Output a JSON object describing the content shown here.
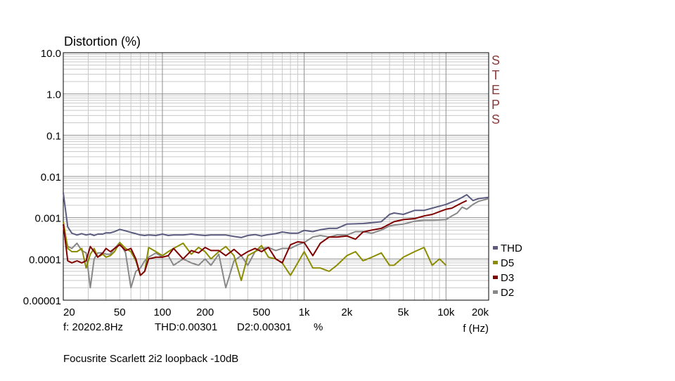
{
  "chart_data": {
    "type": "line",
    "title": "Distortion (%)",
    "xlabel": "f (Hz)",
    "ylabel": "Distortion (%)",
    "x_scale": "log",
    "y_scale": "log",
    "xlim": [
      20,
      20000
    ],
    "ylim": [
      1e-05,
      10
    ],
    "grid": true,
    "legend_position": "bottom-right",
    "x_tick_labels": [
      "20",
      "50",
      "100",
      "200",
      "500",
      "1k",
      "2k",
      "5k",
      "10k",
      "20k"
    ],
    "y_tick_labels": [
      "10.0",
      "1.0",
      "0.1",
      "0.01",
      "0.001",
      "0.0001",
      "0.00001"
    ],
    "watermark": "STEPS",
    "series": [
      {
        "name": "THD",
        "color": "#5c5c80",
        "x": [
          20,
          21.5,
          23,
          25,
          27,
          29,
          31,
          33,
          35,
          38,
          40,
          43,
          46,
          50,
          55,
          60,
          65,
          70,
          75,
          80,
          90,
          100,
          110,
          120,
          140,
          160,
          180,
          200,
          220,
          250,
          280,
          320,
          360,
          400,
          450,
          500,
          560,
          630,
          700,
          800,
          900,
          1000,
          1150,
          1300,
          1500,
          1700,
          2000,
          2300,
          2600,
          3000,
          3500,
          4000,
          4300,
          5000,
          6000,
          7000,
          8000,
          9000,
          10000,
          11000,
          12000,
          13000,
          14000,
          15500,
          17000,
          20000
        ],
        "y": [
          0.004,
          0.0006,
          0.00042,
          0.00038,
          0.00041,
          0.00038,
          0.0004,
          0.00037,
          0.0004,
          0.0004,
          0.00043,
          0.00043,
          0.00046,
          0.00052,
          0.00048,
          0.00044,
          0.00041,
          0.00038,
          0.00037,
          0.00038,
          0.00037,
          0.0004,
          0.00037,
          0.00038,
          0.00038,
          0.0004,
          0.00038,
          0.00037,
          0.00038,
          0.00038,
          0.00038,
          0.00035,
          0.00033,
          0.00037,
          0.00039,
          0.00036,
          0.00039,
          0.00041,
          0.00045,
          0.00042,
          0.00042,
          0.00049,
          0.00046,
          0.00051,
          0.00055,
          0.00055,
          0.0007,
          0.00071,
          0.00072,
          0.00076,
          0.0008,
          0.0012,
          0.0013,
          0.0012,
          0.0015,
          0.0015,
          0.0017,
          0.0019,
          0.0021,
          0.0024,
          0.0027,
          0.0031,
          0.0036,
          0.0026,
          0.0029,
          0.0031
        ]
      },
      {
        "name": "D5",
        "color": "#8c8c00",
        "x": [
          20,
          21.5,
          23,
          25,
          27,
          29,
          31,
          33,
          35,
          38,
          40,
          43,
          46,
          50,
          55,
          60,
          65,
          70,
          75,
          80,
          90,
          100,
          110,
          120,
          140,
          160,
          180,
          200,
          220,
          250,
          280,
          320,
          360,
          400,
          450,
          500,
          560,
          630,
          700,
          800,
          900,
          1000,
          1150,
          1300,
          1500,
          1700,
          2000,
          2300,
          2600,
          3000,
          3500,
          4000,
          4300,
          5000,
          6000,
          7000,
          8000,
          9000,
          10000
        ],
        "y": [
          0.0008,
          0.00018,
          0.00015,
          0.00015,
          0.00018,
          6e-05,
          0.00013,
          0.00018,
          0.00011,
          0.00013,
          0.00011,
          0.00012,
          0.00015,
          0.00025,
          0.00018,
          0.00015,
          9e-05,
          4e-05,
          5e-05,
          0.00019,
          0.00015,
          0.00012,
          0.00015,
          0.00018,
          0.00024,
          0.00013,
          0.00019,
          0.00015,
          0.0001,
          0.00015,
          0.0002,
          0.00012,
          3e-05,
          0.00012,
          0.00015,
          0.00021,
          0.00011,
          0.0001,
          8e-05,
          4e-05,
          8e-05,
          0.00015,
          6e-05,
          6e-05,
          5e-05,
          7e-05,
          0.00012,
          0.00015,
          9e-05,
          0.00011,
          0.00014,
          7e-05,
          7e-05,
          0.00011,
          0.00015,
          0.00019,
          7e-05,
          0.0001,
          7e-05
        ]
      },
      {
        "name": "D3",
        "color": "#800000",
        "x": [
          20,
          21.5,
          23,
          25,
          27,
          29,
          31,
          33,
          35,
          38,
          40,
          43,
          46,
          50,
          55,
          60,
          65,
          70,
          75,
          80,
          90,
          100,
          110,
          120,
          140,
          160,
          180,
          200,
          220,
          250,
          280,
          320,
          360,
          400,
          450,
          500,
          560,
          630,
          700,
          800,
          900,
          1000,
          1150,
          1300,
          1500,
          1700,
          2000,
          2300,
          2600,
          3000,
          3500,
          4000,
          4300,
          5000,
          6000,
          7000,
          8000,
          9000,
          10000,
          11000,
          12000,
          13000,
          14000
        ],
        "y": [
          0.0007,
          9e-05,
          8e-05,
          9e-05,
          8e-05,
          9e-05,
          0.0002,
          0.00015,
          0.00011,
          0.00014,
          0.00018,
          0.00015,
          0.00018,
          0.00022,
          0.00016,
          0.00018,
          0.0001,
          4e-05,
          5e-05,
          0.0001,
          0.00011,
          0.00011,
          0.00012,
          0.00018,
          0.0001,
          0.00016,
          0.00014,
          0.00019,
          0.00016,
          0.00016,
          0.00012,
          0.00017,
          0.00012,
          0.00015,
          0.00018,
          0.00015,
          0.00019,
          0.0001,
          8e-05,
          0.00022,
          0.00026,
          0.00025,
          0.00012,
          0.00024,
          0.00034,
          0.00034,
          0.00036,
          0.0003,
          0.00045,
          0.0005,
          0.00055,
          0.0007,
          0.0008,
          0.0009,
          0.00095,
          0.0011,
          0.0012,
          0.0014,
          0.0016,
          0.0017,
          0.002,
          0.0023,
          0.0026
        ]
      },
      {
        "name": "D2",
        "color": "#888888",
        "x": [
          20,
          21.5,
          23,
          25,
          27,
          29,
          31,
          33,
          35,
          38,
          40,
          43,
          46,
          50,
          55,
          60,
          65,
          70,
          75,
          80,
          90,
          100,
          110,
          120,
          140,
          160,
          180,
          200,
          220,
          250,
          280,
          320,
          360,
          400,
          450,
          500,
          560,
          630,
          700,
          800,
          900,
          1000,
          1150,
          1300,
          1500,
          1700,
          2000,
          2300,
          2600,
          3000,
          3500,
          4000,
          4300,
          5000,
          6000,
          7000,
          8000,
          9000,
          10000,
          11000,
          12000,
          13000,
          14000,
          15500,
          17000,
          20000
        ],
        "y": [
          0.0006,
          0.0002,
          0.00018,
          0.00024,
          0.00016,
          0.00014,
          2e-05,
          0.0001,
          0.00014,
          0.00014,
          0.00013,
          0.00013,
          0.00018,
          0.00025,
          0.00014,
          2e-05,
          5e-05,
          6e-05,
          9e-05,
          0.00011,
          0.00014,
          0.00011,
          0.00012,
          7e-05,
          0.0001,
          8e-05,
          7e-05,
          0.0001,
          7e-05,
          0.00013,
          2e-05,
          9e-05,
          0.00012,
          7e-05,
          0.00015,
          0.00018,
          0.00019,
          0.00016,
          0.00018,
          0.00018,
          0.00022,
          0.00025,
          0.00034,
          0.00037,
          0.00034,
          0.00038,
          0.00038,
          0.00046,
          0.00046,
          0.00042,
          0.0005,
          0.00063,
          0.00066,
          0.0007,
          0.00082,
          0.00087,
          0.00087,
          0.00088,
          0.0009,
          0.0011,
          0.0013,
          0.0018,
          0.0016,
          0.0021,
          0.0025,
          0.0029
        ]
      }
    ]
  },
  "readout": {
    "frequency": "f: 20202.8Hz",
    "thd": "THD:0.00301",
    "d2": "D2:0.00301",
    "unit": "%"
  },
  "caption": "Focusrite Scarlett 2i2 loopback -10dB"
}
